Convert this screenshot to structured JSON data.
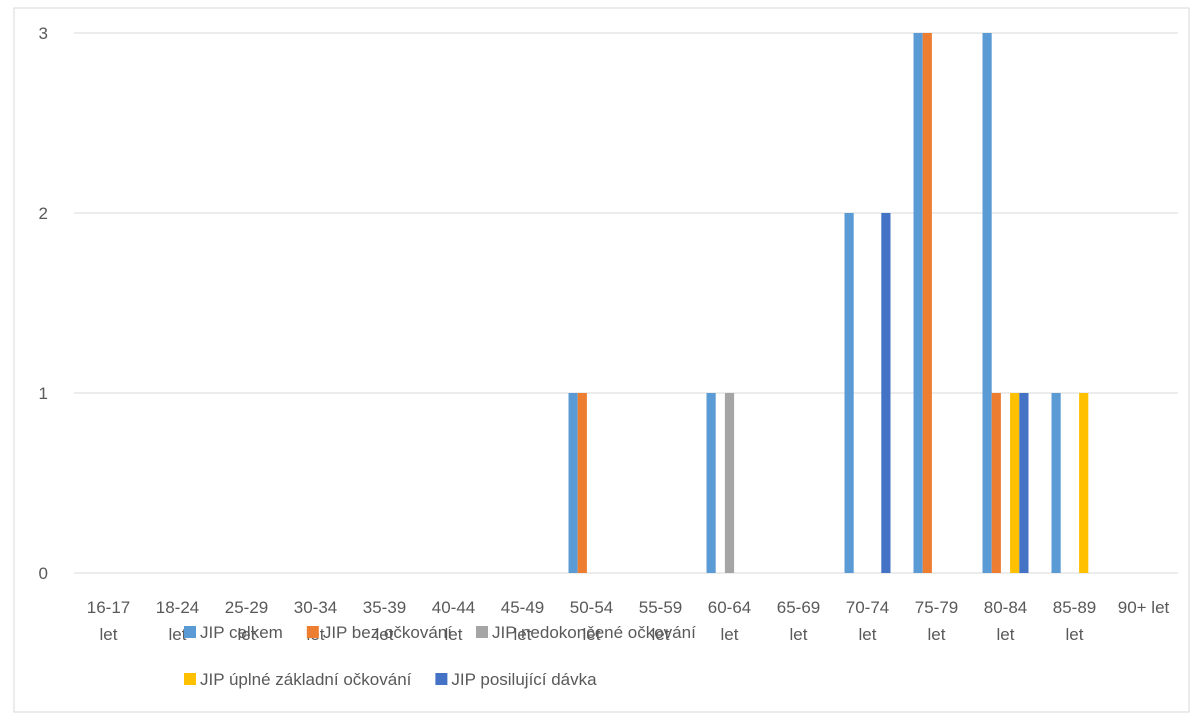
{
  "chart_data": {
    "type": "bar",
    "title": "",
    "xlabel": "",
    "ylabel": "",
    "ylim": [
      0,
      3
    ],
    "yticks": [
      0,
      1,
      2,
      3
    ],
    "grid": true,
    "legend_position": "bottom",
    "categories": [
      "16-17 let",
      "18-24 let",
      "25-29 let",
      "30-34 let",
      "35-39 let",
      "40-44 let",
      "45-49 let",
      "50-54 let",
      "55-59 let",
      "60-64 let",
      "65-69 let",
      "70-74 let",
      "75-79 let",
      "80-84 let",
      "85-89 let",
      "90+ let"
    ],
    "series": [
      {
        "name": "JIP celkem",
        "color": "#5b9bd5",
        "values": [
          0,
          0,
          0,
          0,
          0,
          0,
          0,
          1,
          0,
          1,
          0,
          2,
          3,
          3,
          1,
          0
        ]
      },
      {
        "name": "JIP bez očkování",
        "color": "#ed7d31",
        "values": [
          0,
          0,
          0,
          0,
          0,
          0,
          0,
          1,
          0,
          0,
          0,
          0,
          3,
          1,
          0,
          0
        ]
      },
      {
        "name": "JIP nedokončené očkování",
        "color": "#a5a5a5",
        "values": [
          0,
          0,
          0,
          0,
          0,
          0,
          0,
          0,
          0,
          1,
          0,
          0,
          0,
          0,
          0,
          0
        ]
      },
      {
        "name": "JIP úplné základní očkování",
        "color": "#ffc000",
        "values": [
          0,
          0,
          0,
          0,
          0,
          0,
          0,
          0,
          0,
          0,
          0,
          0,
          0,
          1,
          1,
          0
        ]
      },
      {
        "name": "JIP posilující dávka",
        "color": "#4472c4",
        "values": [
          0,
          0,
          0,
          0,
          0,
          0,
          0,
          0,
          0,
          0,
          0,
          2,
          0,
          1,
          0,
          0
        ]
      }
    ]
  },
  "colors": {
    "gridline": "#d9d9d9",
    "axis_text": "#595959",
    "frame": "#d9d9d9"
  }
}
